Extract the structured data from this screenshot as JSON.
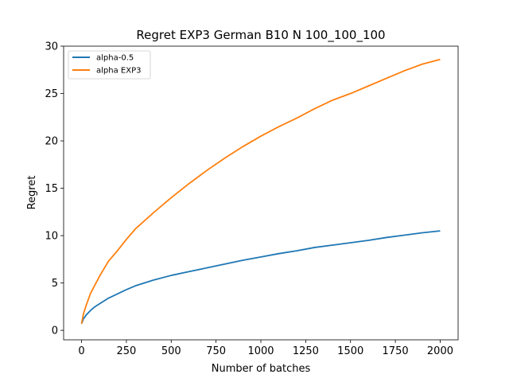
{
  "chart_data": {
    "type": "line",
    "title": "Regret EXP3 German B10 N 100_100_100",
    "xlabel": "Number of batches",
    "ylabel": "Regret",
    "xlim": [
      -100,
      2100
    ],
    "ylim": [
      -1,
      30
    ],
    "xticks": [
      0,
      250,
      500,
      750,
      1000,
      1250,
      1500,
      1750,
      2000
    ],
    "yticks": [
      0,
      5,
      10,
      15,
      20,
      25,
      30
    ],
    "grid": false,
    "legend": "top-left",
    "series": [
      {
        "name": "alpha-0.5",
        "color": "#1f77b4",
        "x": [
          0,
          10,
          25,
          50,
          75,
          100,
          150,
          200,
          250,
          300,
          400,
          500,
          600,
          700,
          800,
          900,
          1000,
          1100,
          1200,
          1300,
          1400,
          1500,
          1600,
          1700,
          1800,
          1900,
          2000
        ],
        "y": [
          0.7,
          1.2,
          1.6,
          2.1,
          2.5,
          2.8,
          3.4,
          3.85,
          4.3,
          4.7,
          5.3,
          5.8,
          6.2,
          6.6,
          7.0,
          7.4,
          7.75,
          8.1,
          8.4,
          8.75,
          9.0,
          9.25,
          9.5,
          9.8,
          10.05,
          10.3,
          10.5
        ]
      },
      {
        "name": "alpha EXP3",
        "color": "#ff7f0e",
        "x": [
          0,
          10,
          25,
          50,
          75,
          100,
          150,
          200,
          250,
          300,
          400,
          500,
          600,
          700,
          800,
          900,
          1000,
          1100,
          1200,
          1300,
          1400,
          1500,
          1600,
          1700,
          1800,
          1900,
          2000
        ],
        "y": [
          0.7,
          1.7,
          2.6,
          3.9,
          4.8,
          5.7,
          7.3,
          8.4,
          9.6,
          10.7,
          12.4,
          14.0,
          15.5,
          16.9,
          18.2,
          19.4,
          20.5,
          21.5,
          22.4,
          23.4,
          24.3,
          25.0,
          25.8,
          26.6,
          27.4,
          28.1,
          28.6
        ]
      }
    ]
  }
}
